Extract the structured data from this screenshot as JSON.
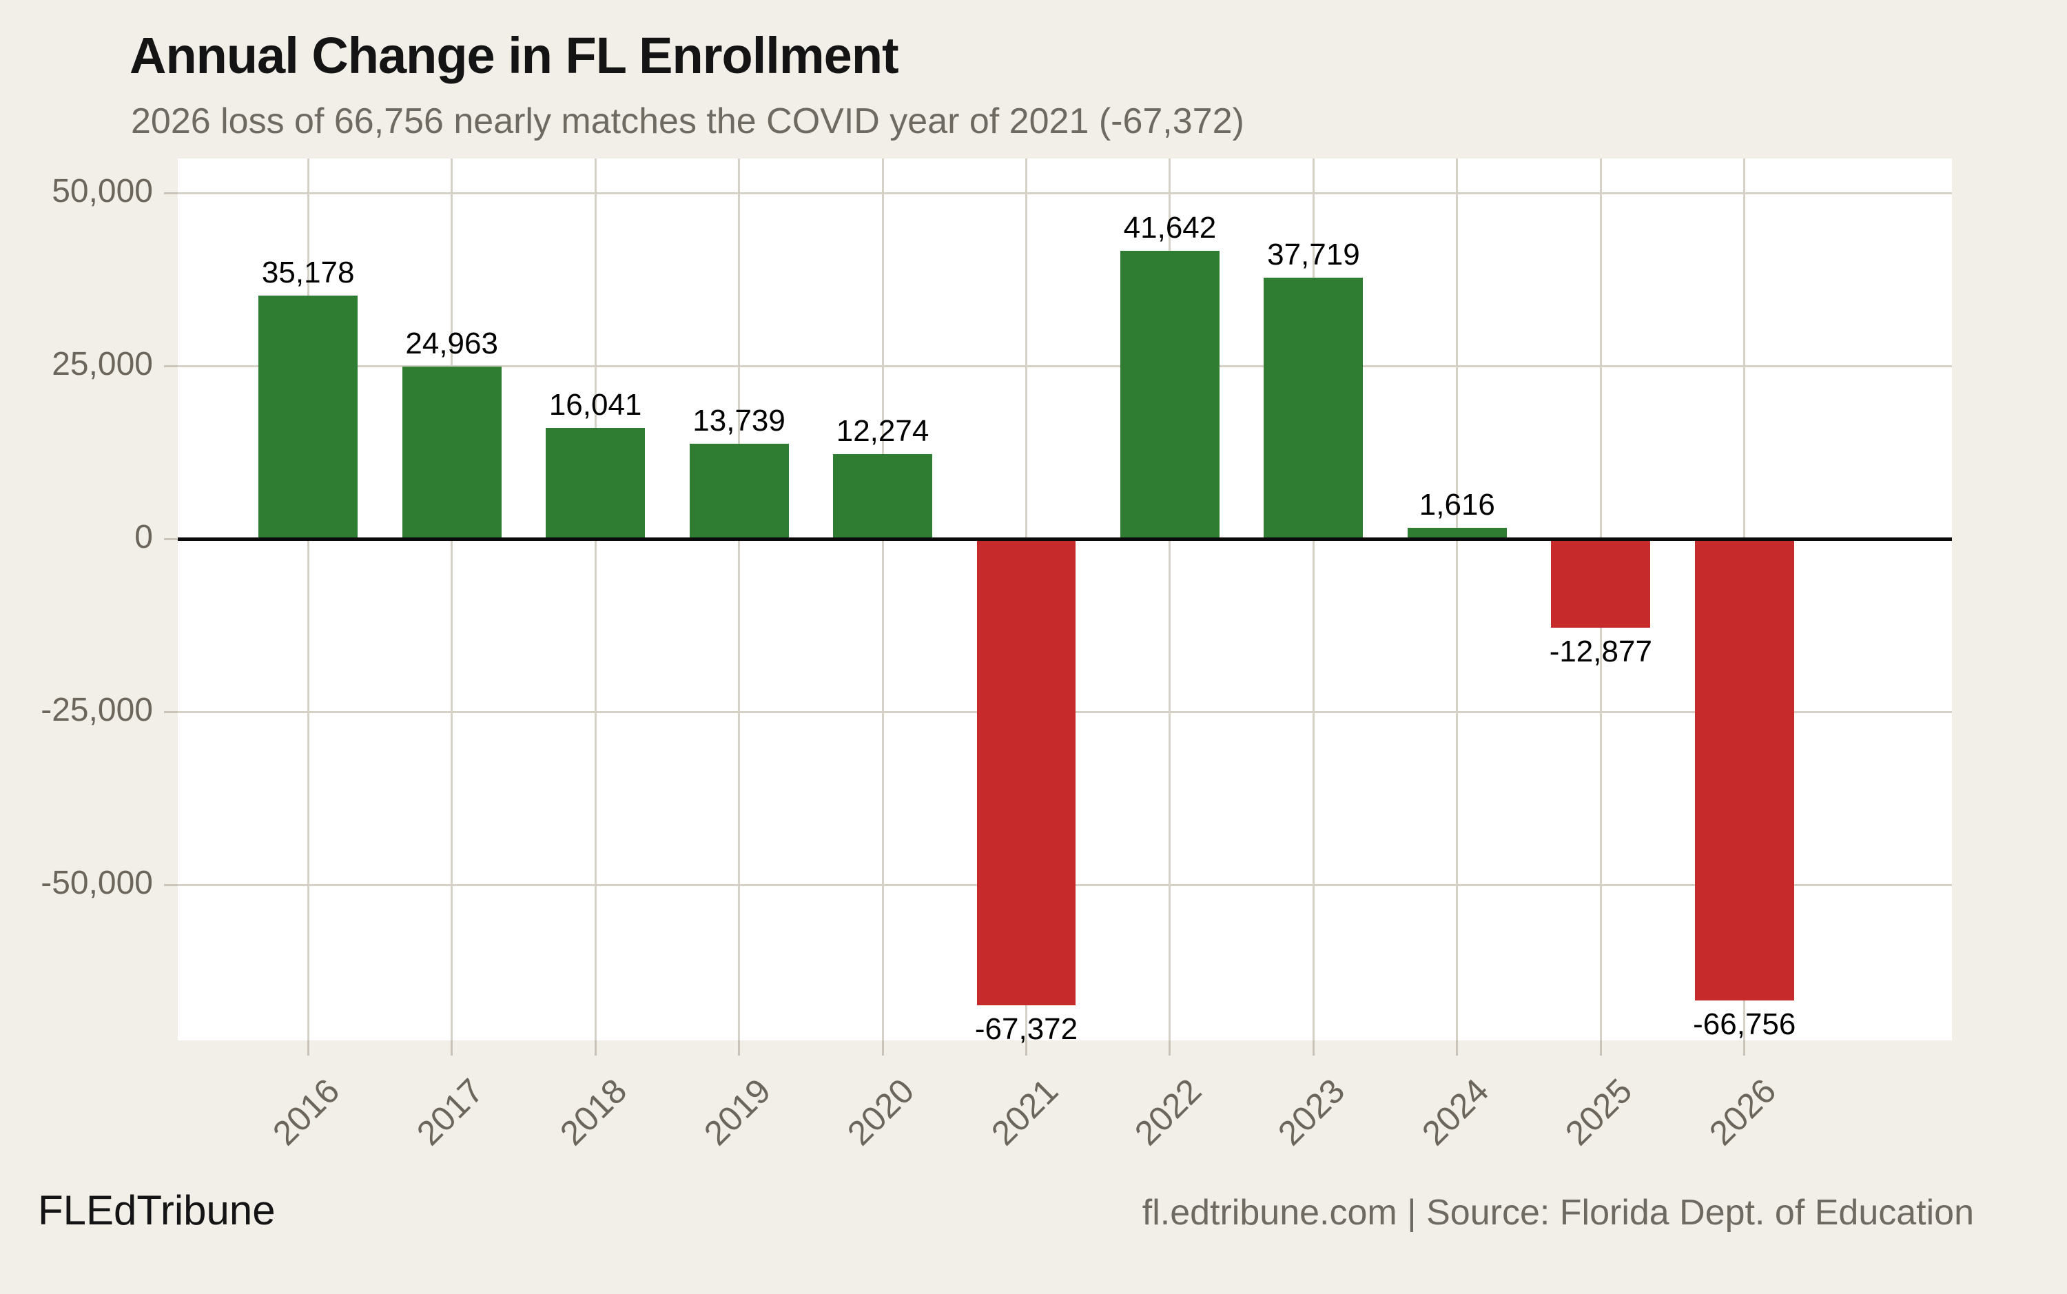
{
  "title": "Annual Change in FL Enrollment",
  "subtitle": "2026 loss of 66,756 nearly matches the COVID year of 2021 (-67,372)",
  "footer": {
    "brand": "FLEdTribune",
    "attribution": "fl.edtribune.com | Source: Florida Dept. of Education"
  },
  "colors": {
    "positive_bar": "#2e7d32",
    "negative_bar": "#c72a2a",
    "page_background": "#f2efe9",
    "plot_background": "#ffffff",
    "gridline": "#d6d1c7",
    "zero_line": "#0a0a0a",
    "axis_text": "#6b655c",
    "subtitle_text": "#6e6a62",
    "title_text": "#141414",
    "value_label_text": "#000000"
  },
  "chart_data": {
    "type": "bar",
    "title": "Annual Change in FL Enrollment",
    "subtitle": "2026 loss of 66,756 nearly matches the COVID year of 2021 (-67,372)",
    "categories": [
      "2016",
      "2017",
      "2018",
      "2019",
      "2020",
      "2021",
      "2022",
      "2023",
      "2024",
      "2025",
      "2026"
    ],
    "values": [
      35178,
      24963,
      16041,
      13739,
      12274,
      -67372,
      41642,
      37719,
      1616,
      -12877,
      -66756
    ],
    "value_labels": [
      "35,178",
      "24,963",
      "16,041",
      "13,739",
      "12,274",
      "-67,372",
      "41,642",
      "37,719",
      "1,616",
      "-12,877",
      "-66,756"
    ],
    "xlabel": "",
    "ylabel": "",
    "ylim": [
      -72500,
      55000
    ],
    "yticks": [
      50000,
      25000,
      0,
      -25000,
      -50000
    ],
    "ytick_labels": [
      "50,000",
      "25,000",
      "0",
      "-25,000",
      "-50,000"
    ],
    "grid": true,
    "legend": false,
    "bar_color_rule": "positive values green, negative values red"
  }
}
